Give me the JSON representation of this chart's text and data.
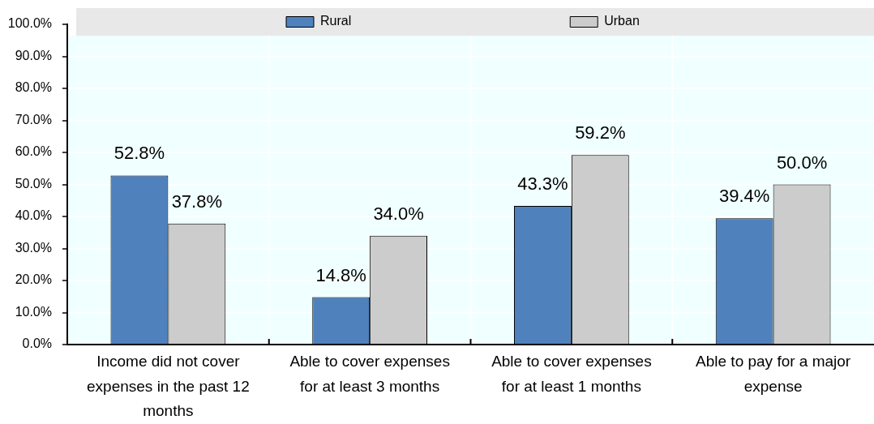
{
  "chart_data": {
    "type": "bar",
    "categories": [
      "Income did not cover expenses in the past 12 months",
      "Able to cover expenses for at least 3 months",
      "Able to cover expenses for at least 1 months",
      "Able to pay for a major expense"
    ],
    "series": [
      {
        "name": "Rural",
        "color": "#4f81bd",
        "values": [
          52.8,
          14.8,
          43.3,
          39.4
        ],
        "value_labels": [
          "52.8%",
          "14.8%",
          "43.3%",
          "39.4%"
        ]
      },
      {
        "name": "Urban",
        "color": "#cccccc",
        "values": [
          37.8,
          34.0,
          59.2,
          50.0
        ],
        "value_labels": [
          "37.8%",
          "34.0%",
          "59.2%",
          "50.0%"
        ]
      }
    ],
    "ylim": [
      0,
      100
    ],
    "yticks": [
      {
        "value": 0,
        "label": "0.0%"
      },
      {
        "value": 10,
        "label": "10.0%"
      },
      {
        "value": 20,
        "label": "20.0%"
      },
      {
        "value": 30,
        "label": "30.0%"
      },
      {
        "value": 40,
        "label": "40.0%"
      },
      {
        "value": 50,
        "label": "50.0%"
      },
      {
        "value": 60,
        "label": "60.0%"
      },
      {
        "value": 70,
        "label": "70.0%"
      },
      {
        "value": 80,
        "label": "80.0%"
      },
      {
        "value": 90,
        "label": "90.0%"
      },
      {
        "value": 100,
        "label": "100.0%"
      }
    ],
    "grid": true,
    "legend": "top"
  }
}
